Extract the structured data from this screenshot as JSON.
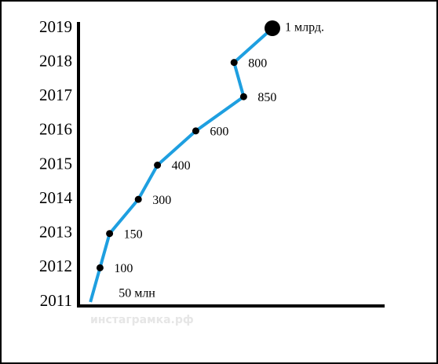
{
  "chart_data": {
    "type": "line",
    "categories": [
      "2011",
      "2012",
      "2013",
      "2014",
      "2015",
      "2016",
      "2017",
      "2018",
      "2019"
    ],
    "values": [
      50,
      100,
      150,
      300,
      400,
      600,
      850,
      800,
      1000
    ],
    "value_labels": [
      "50 млн",
      "100",
      "150",
      "300",
      "400",
      "600",
      "850",
      "800",
      "1 млрд."
    ],
    "color": "#1e9fe0",
    "watermark": "инстаграмка.рф"
  }
}
